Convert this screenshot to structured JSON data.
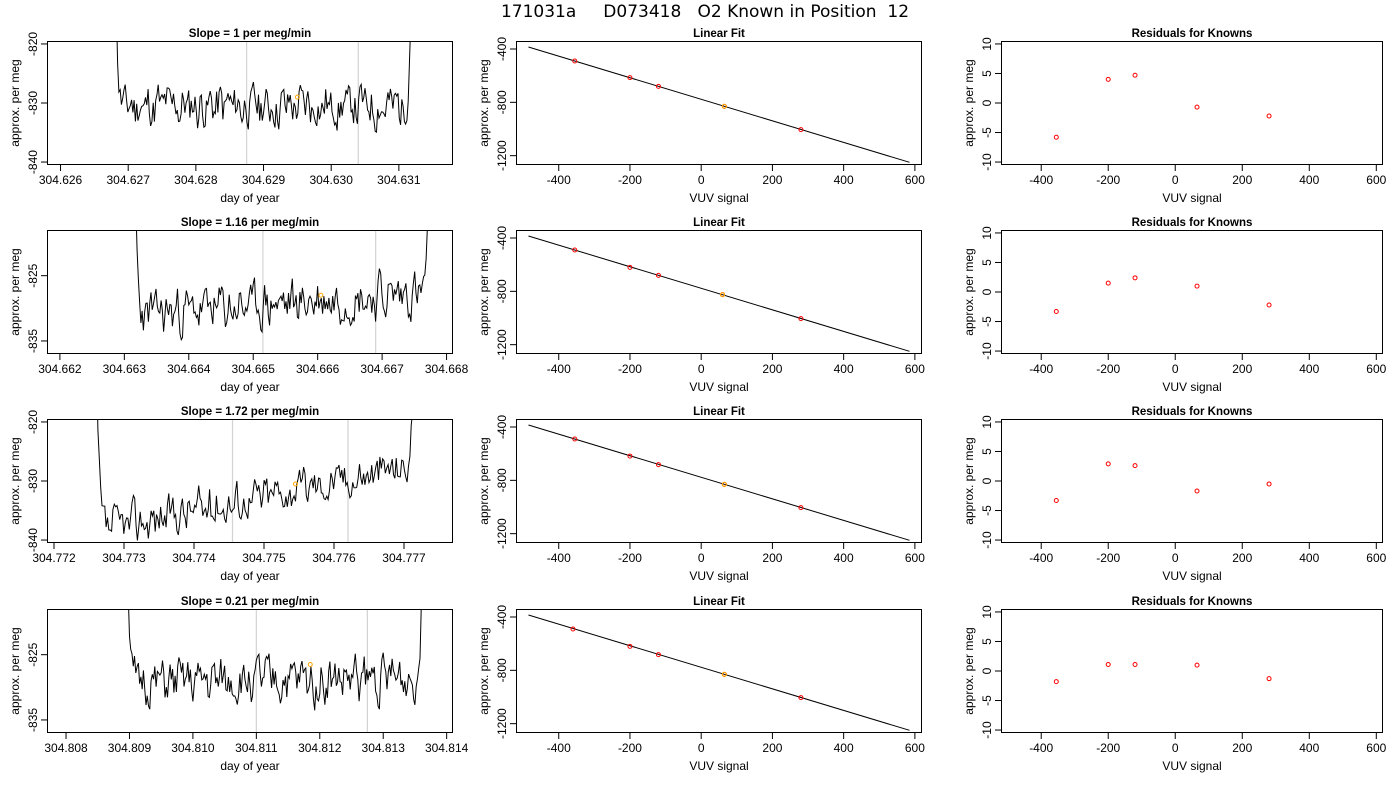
{
  "figure": {
    "title": "171031a     D073418   O2 Known in Position  12"
  },
  "colors": {
    "trace": "#000000",
    "window_line": "#d3d3d3",
    "mean_marker": "#ffa500",
    "point_marker": "#ff0000",
    "fit_line": "#000000"
  },
  "rows": [
    {
      "trace": {
        "title": "Slope =  1  per meg/min",
        "xlabel": "day of year",
        "ylabel": "approx. per meg",
        "xlim": [
          304.6258,
          304.6318
        ],
        "ylim": [
          -840.5,
          -819.5
        ],
        "x_ticks": [
          "304.626",
          "304.627",
          "304.628",
          "304.629",
          "304.630",
          "304.631"
        ],
        "y_ticks": [
          "-840",
          "-830",
          "-820"
        ],
        "t_start": 304.62675,
        "t_end": 304.63125,
        "window": [
          304.62875,
          304.6304
        ],
        "mean_point": [
          304.6295,
          -829.0
        ],
        "base": -830.5,
        "trend": 0.0,
        "amp": 2.0,
        "seed": 11
      },
      "fit": {
        "title": "Linear Fit",
        "xlabel": "VUV signal",
        "ylabel": "approx. per meg",
        "xlim": [
          -520,
          620
        ],
        "ylim": [
          -1270,
          -340
        ],
        "x_ticks": [
          "-400",
          "-200",
          "0",
          "200",
          "400",
          "600"
        ],
        "y_ticks": [
          "-1200",
          "-800",
          "-400"
        ],
        "line": [
          [
            -485,
            -385
          ],
          [
            585,
            -1250
          ]
        ],
        "points": [
          [
            -355,
            -490
          ],
          [
            -200,
            -615
          ],
          [
            -120,
            -680
          ],
          [
            65,
            -830
          ],
          [
            280,
            -1005
          ]
        ],
        "highlight": [
          65,
          -830
        ]
      },
      "resid": {
        "title": "Residuals for Knowns",
        "xlabel": "VUV signal",
        "ylabel": "approx. per meg",
        "xlim": [
          -520,
          620
        ],
        "ylim": [
          -10.5,
          10.5
        ],
        "x_ticks": [
          "-400",
          "-200",
          "0",
          "200",
          "400",
          "600"
        ],
        "y_ticks": [
          "-10",
          "-5",
          "0",
          "5",
          "10"
        ],
        "points": [
          [
            -355,
            -5.8
          ],
          [
            -200,
            4.0
          ],
          [
            -120,
            4.7
          ],
          [
            65,
            -0.7
          ],
          [
            280,
            -2.2
          ]
        ]
      }
    },
    {
      "trace": {
        "title": "Slope =  1.16  per meg/min",
        "xlabel": "day of year",
        "ylabel": "approx. per meg",
        "xlim": [
          304.6618,
          304.6681
        ],
        "ylim": [
          -837.0,
          -818.0
        ],
        "x_ticks": [
          "304.662",
          "304.663",
          "304.664",
          "304.665",
          "304.666",
          "304.667",
          "304.668"
        ],
        "y_ticks": [
          "-835",
          "-825"
        ],
        "t_start": 304.6631,
        "t_end": 304.6678,
        "window": [
          304.66515,
          304.6669
        ],
        "mean_point": [
          304.66605,
          -828.0
        ],
        "base": -831.0,
        "trend": 3.5,
        "amp": 1.8,
        "seed": 23
      },
      "fit": {
        "title": "Linear Fit",
        "xlabel": "VUV signal",
        "ylabel": "approx. per meg",
        "xlim": [
          -520,
          620
        ],
        "ylim": [
          -1270,
          -340
        ],
        "x_ticks": [
          "-400",
          "-200",
          "0",
          "200",
          "400",
          "600"
        ],
        "y_ticks": [
          "-1200",
          "-800",
          "-400"
        ],
        "line": [
          [
            -485,
            -385
          ],
          [
            585,
            -1250
          ]
        ],
        "points": [
          [
            -355,
            -490
          ],
          [
            -200,
            -620
          ],
          [
            -120,
            -680
          ],
          [
            60,
            -825
          ],
          [
            280,
            -1005
          ]
        ],
        "highlight": [
          60,
          -825
        ]
      },
      "resid": {
        "title": "Residuals for Knowns",
        "xlabel": "VUV signal",
        "ylabel": "approx. per meg",
        "xlim": [
          -520,
          620
        ],
        "ylim": [
          -10.5,
          10.5
        ],
        "x_ticks": [
          "-400",
          "-200",
          "0",
          "200",
          "400",
          "600"
        ],
        "y_ticks": [
          "-10",
          "-5",
          "0",
          "5",
          "10"
        ],
        "points": [
          [
            -355,
            -3.3
          ],
          [
            -200,
            1.5
          ],
          [
            -120,
            2.4
          ],
          [
            65,
            1.0
          ],
          [
            280,
            -2.2
          ]
        ]
      }
    },
    {
      "trace": {
        "title": "Slope =  1.72  per meg/min",
        "xlabel": "day of year",
        "ylabel": "approx. per meg",
        "xlim": [
          304.7719,
          304.7777
        ],
        "ylim": [
          -840.5,
          -819.5
        ],
        "x_ticks": [
          "304.772",
          "304.773",
          "304.774",
          "304.775",
          "304.776",
          "304.777"
        ],
        "y_ticks": [
          "-840",
          "-830",
          "-820"
        ],
        "t_start": 304.77255,
        "t_end": 304.77722,
        "window": [
          304.77455,
          304.7762
        ],
        "mean_point": [
          304.77545,
          -830.5
        ],
        "base": -838.5,
        "trend": 11.5,
        "amp": 1.8,
        "seed": 37
      },
      "fit": {
        "title": "Linear Fit",
        "xlabel": "VUV signal",
        "ylabel": "approx. per meg",
        "xlim": [
          -520,
          620
        ],
        "ylim": [
          -1270,
          -340
        ],
        "x_ticks": [
          "-400",
          "-200",
          "0",
          "200",
          "400",
          "600"
        ],
        "y_ticks": [
          "-1200",
          "-800",
          "-400"
        ],
        "line": [
          [
            -485,
            -385
          ],
          [
            585,
            -1250
          ]
        ],
        "points": [
          [
            -355,
            -490
          ],
          [
            -200,
            -618
          ],
          [
            -120,
            -682
          ],
          [
            65,
            -830
          ],
          [
            280,
            -1005
          ]
        ],
        "highlight": [
          65,
          -830
        ]
      },
      "resid": {
        "title": "Residuals for Knowns",
        "xlabel": "VUV signal",
        "ylabel": "approx. per meg",
        "xlim": [
          -520,
          620
        ],
        "ylim": [
          -10.5,
          10.5
        ],
        "x_ticks": [
          "-400",
          "-200",
          "0",
          "200",
          "400",
          "600"
        ],
        "y_ticks": [
          "-10",
          "-5",
          "0",
          "5",
          "10"
        ],
        "points": [
          [
            -355,
            -3.3
          ],
          [
            -200,
            2.9
          ],
          [
            -120,
            2.6
          ],
          [
            65,
            -1.7
          ],
          [
            280,
            -0.5
          ]
        ]
      }
    },
    {
      "trace": {
        "title": "Slope =  0.21  per meg/min",
        "xlabel": "day of year",
        "ylabel": "approx. per meg",
        "xlim": [
          304.8077,
          304.8141
        ],
        "ylim": [
          -837.0,
          -818.0
        ],
        "x_ticks": [
          "304.808",
          "304.809",
          "304.810",
          "304.811",
          "304.812",
          "304.813",
          "304.814"
        ],
        "y_ticks": [
          "-835",
          "-825"
        ],
        "t_start": 304.8089,
        "t_end": 304.8137,
        "window": [
          304.811,
          304.81275
        ],
        "mean_point": [
          304.81185,
          -826.5
        ],
        "base": -829.5,
        "trend": 1.0,
        "amp": 1.8,
        "seed": 51
      },
      "fit": {
        "title": "Linear Fit",
        "xlabel": "VUV signal",
        "ylabel": "approx. per meg",
        "xlim": [
          -520,
          620
        ],
        "ylim": [
          -1270,
          -340
        ],
        "x_ticks": [
          "-400",
          "-200",
          "0",
          "200",
          "400",
          "600"
        ],
        "y_ticks": [
          "-1200",
          "-800",
          "-400"
        ],
        "line": [
          [
            -485,
            -385
          ],
          [
            585,
            -1250
          ]
        ],
        "points": [
          [
            -360,
            -490
          ],
          [
            -200,
            -620
          ],
          [
            -120,
            -682
          ],
          [
            65,
            -830
          ],
          [
            280,
            -1005
          ]
        ],
        "highlight": [
          65,
          -830
        ]
      },
      "resid": {
        "title": "Residuals for Knowns",
        "xlabel": "VUV signal",
        "ylabel": "approx. per meg",
        "xlim": [
          -520,
          620
        ],
        "ylim": [
          -10.5,
          10.5
        ],
        "x_ticks": [
          "-400",
          "-200",
          "0",
          "200",
          "400",
          "600"
        ],
        "y_ticks": [
          "-10",
          "-5",
          "0",
          "5",
          "10"
        ],
        "points": [
          [
            -355,
            -1.8
          ],
          [
            -200,
            1.1
          ],
          [
            -120,
            1.1
          ],
          [
            65,
            1.0
          ],
          [
            280,
            -1.3
          ]
        ]
      }
    }
  ],
  "chart_data": [
    {
      "type": "line",
      "title": "Slope =  1  per meg/min",
      "xlabel": "day of year",
      "ylabel": "approx. per meg",
      "xlim": [
        304.6258,
        304.6318
      ],
      "ylim": [
        -840.5,
        -819.5
      ]
    },
    {
      "type": "scatter",
      "title": "Linear Fit",
      "xlabel": "VUV signal",
      "ylabel": "approx. per meg",
      "x": [
        -355,
        -200,
        -120,
        65,
        280
      ],
      "y": [
        -490,
        -615,
        -680,
        -830,
        -1005
      ],
      "line": [
        [
          -485,
          -385
        ],
        [
          585,
          -1250
        ]
      ]
    },
    {
      "type": "scatter",
      "title": "Residuals for Knowns",
      "xlabel": "VUV signal",
      "ylabel": "approx. per meg",
      "x": [
        -355,
        -200,
        -120,
        65,
        280
      ],
      "y": [
        -5.8,
        4.0,
        4.7,
        -0.7,
        -2.2
      ],
      "ylim": [
        -10.5,
        10.5
      ]
    },
    {
      "type": "line",
      "title": "Slope =  1.16  per meg/min",
      "xlabel": "day of year",
      "ylabel": "approx. per meg",
      "xlim": [
        304.6618,
        304.6681
      ],
      "ylim": [
        -837.0,
        -818.0
      ]
    },
    {
      "type": "scatter",
      "title": "Linear Fit",
      "xlabel": "VUV signal",
      "ylabel": "approx. per meg",
      "x": [
        -355,
        -200,
        -120,
        60,
        280
      ],
      "y": [
        -490,
        -620,
        -680,
        -825,
        -1005
      ]
    },
    {
      "type": "scatter",
      "title": "Residuals for Knowns",
      "xlabel": "VUV signal",
      "ylabel": "approx. per meg",
      "x": [
        -355,
        -200,
        -120,
        65,
        280
      ],
      "y": [
        -3.3,
        1.5,
        2.4,
        1.0,
        -2.2
      ]
    },
    {
      "type": "line",
      "title": "Slope =  1.72  per meg/min",
      "xlabel": "day of year",
      "ylabel": "approx. per meg",
      "xlim": [
        304.7719,
        304.7777
      ],
      "ylim": [
        -840.5,
        -819.5
      ]
    },
    {
      "type": "scatter",
      "title": "Linear Fit",
      "xlabel": "VUV signal",
      "ylabel": "approx. per meg",
      "x": [
        -355,
        -200,
        -120,
        65,
        280
      ],
      "y": [
        -490,
        -618,
        -682,
        -830,
        -1005
      ]
    },
    {
      "type": "scatter",
      "title": "Residuals for Knowns",
      "xlabel": "VUV signal",
      "ylabel": "approx. per meg",
      "x": [
        -355,
        -200,
        -120,
        65,
        280
      ],
      "y": [
        -3.3,
        2.9,
        2.6,
        -1.7,
        -0.5
      ]
    },
    {
      "type": "line",
      "title": "Slope =  0.21  per meg/min",
      "xlabel": "day of year",
      "ylabel": "approx. per meg",
      "xlim": [
        304.8077,
        304.8141
      ],
      "ylim": [
        -837.0,
        -818.0
      ]
    },
    {
      "type": "scatter",
      "title": "Linear Fit",
      "xlabel": "VUV signal",
      "ylabel": "approx. per meg",
      "x": [
        -360,
        -200,
        -120,
        65,
        280
      ],
      "y": [
        -490,
        -620,
        -682,
        -830,
        -1005
      ]
    },
    {
      "type": "scatter",
      "title": "Residuals for Knowns",
      "xlabel": "VUV signal",
      "ylabel": "approx. per meg",
      "x": [
        -355,
        -200,
        -120,
        65,
        280
      ],
      "y": [
        -1.8,
        1.1,
        1.1,
        1.0,
        -1.3
      ]
    }
  ]
}
